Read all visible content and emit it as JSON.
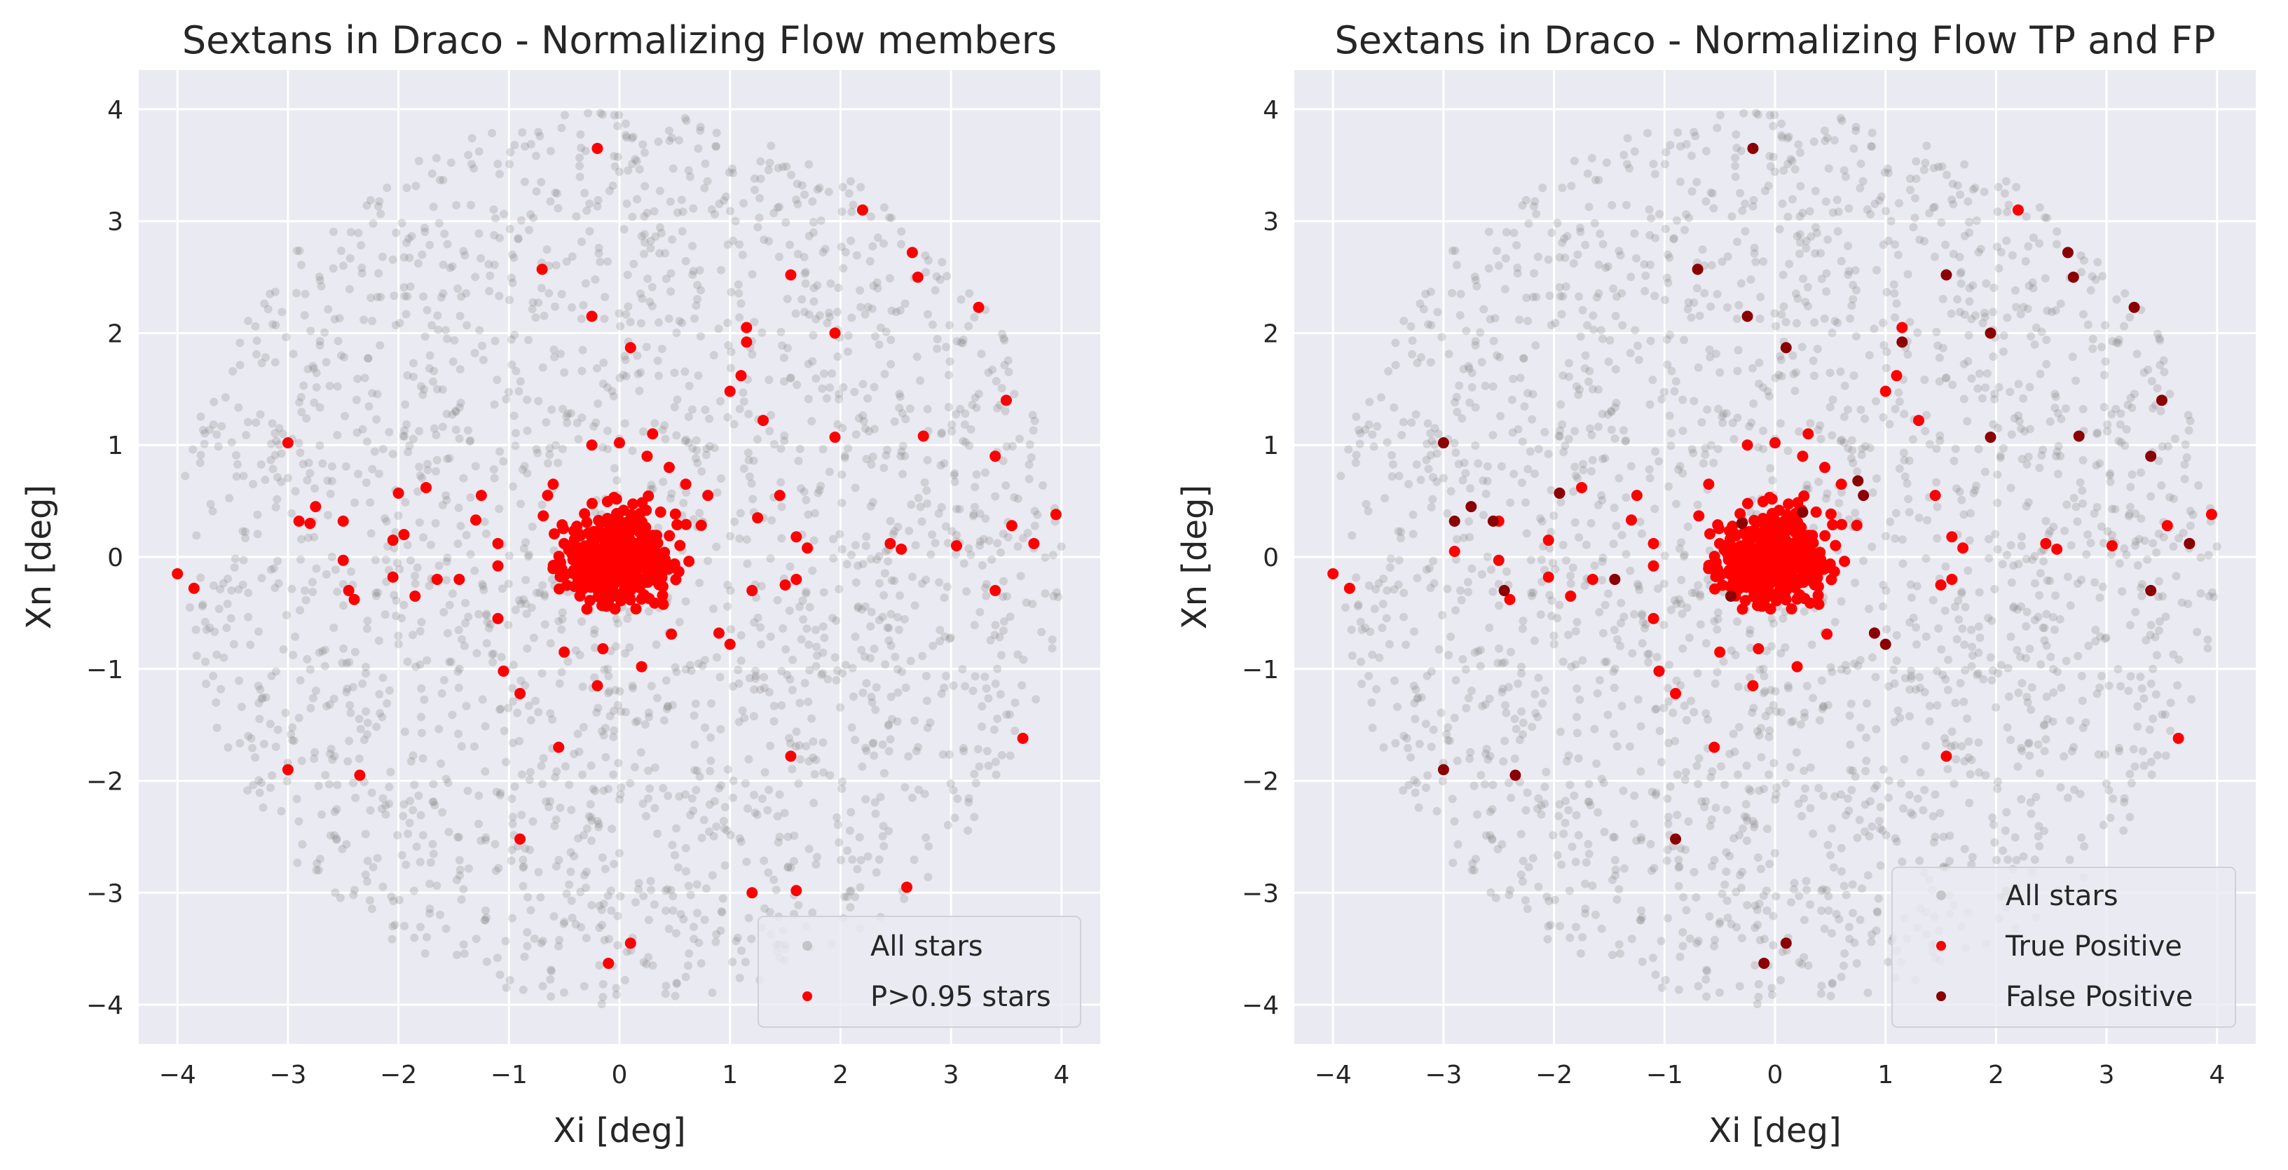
{
  "chart_data": [
    {
      "type": "scatter",
      "title": "Sextans in Draco - Normalizing Flow members",
      "xlabel": "Xi [deg]",
      "ylabel": "Xn [deg]",
      "xlim": [
        -4.35,
        4.35
      ],
      "ylim": [
        -4.35,
        4.35
      ],
      "xticks": [
        "−4",
        "−3",
        "−2",
        "−1",
        "0",
        "1",
        "2",
        "3",
        "4"
      ],
      "yticks": [
        "−4",
        "−3",
        "−2",
        "−1",
        "0",
        "1",
        "2",
        "3",
        "4"
      ],
      "grid": true,
      "legend_position": "lower-right",
      "background_field": {
        "name": "All stars",
        "shape": "disk",
        "center": [
          0,
          0
        ],
        "radius": 4.0,
        "approx_count": 2200,
        "color": "#808080",
        "alpha": 0.25
      },
      "member_cluster": {
        "center": [
          0,
          0
        ],
        "core_sigma": 0.25,
        "approx_count": 420
      },
      "series": [
        {
          "name": "All stars",
          "color": "#a0a0a0",
          "points": []
        },
        {
          "name": "P>0.95 stars",
          "color": "#ff0000",
          "points": [
            [
              -0.2,
              3.65
            ],
            [
              2.2,
              3.1
            ],
            [
              2.65,
              2.72
            ],
            [
              2.7,
              2.5
            ],
            [
              1.55,
              2.52
            ],
            [
              -0.7,
              2.57
            ],
            [
              -0.25,
              2.15
            ],
            [
              0.1,
              1.87
            ],
            [
              3.25,
              2.23
            ],
            [
              1.15,
              2.05
            ],
            [
              1.15,
              1.92
            ],
            [
              1.95,
              2.0
            ],
            [
              1.1,
              1.62
            ],
            [
              1.0,
              1.48
            ],
            [
              3.5,
              1.4
            ],
            [
              1.3,
              1.22
            ],
            [
              2.75,
              1.08
            ],
            [
              1.95,
              1.07
            ],
            [
              -3.0,
              1.02
            ],
            [
              3.4,
              0.9
            ],
            [
              3.95,
              0.38
            ],
            [
              3.55,
              0.28
            ],
            [
              3.75,
              0.12
            ],
            [
              3.05,
              0.1
            ],
            [
              2.45,
              0.12
            ],
            [
              2.55,
              0.07
            ],
            [
              1.7,
              0.08
            ],
            [
              -4.0,
              -0.15
            ],
            [
              -3.85,
              -0.28
            ],
            [
              -2.9,
              0.32
            ],
            [
              -2.75,
              0.45
            ],
            [
              -2.8,
              0.3
            ],
            [
              -2.5,
              0.32
            ],
            [
              -2.5,
              -0.03
            ],
            [
              -2.45,
              -0.3
            ],
            [
              -2.4,
              -0.38
            ],
            [
              -2.05,
              0.15
            ],
            [
              -2.0,
              0.57
            ],
            [
              -1.95,
              0.2
            ],
            [
              -2.05,
              -0.18
            ],
            [
              -1.85,
              -0.35
            ],
            [
              -1.75,
              0.62
            ],
            [
              -1.65,
              -0.2
            ],
            [
              -1.45,
              -0.2
            ],
            [
              -1.3,
              0.33
            ],
            [
              -1.1,
              0.12
            ],
            [
              -1.1,
              -0.08
            ],
            [
              1.45,
              0.55
            ],
            [
              1.6,
              0.18
            ],
            [
              1.6,
              -0.2
            ],
            [
              1.5,
              -0.25
            ],
            [
              3.4,
              -0.3
            ],
            [
              3.65,
              -1.62
            ],
            [
              1.55,
              -1.78
            ],
            [
              1.2,
              -3.0
            ],
            [
              1.6,
              -2.98
            ],
            [
              2.6,
              -2.95
            ],
            [
              0.1,
              -3.45
            ],
            [
              -0.1,
              -3.63
            ],
            [
              -0.9,
              -2.52
            ],
            [
              -1.05,
              -1.02
            ],
            [
              -0.9,
              -1.22
            ],
            [
              -3.0,
              -1.9
            ],
            [
              -2.35,
              -1.95
            ],
            [
              -0.55,
              -1.7
            ],
            [
              -0.2,
              -1.15
            ],
            [
              0.2,
              -0.98
            ],
            [
              -0.15,
              -0.82
            ],
            [
              -0.5,
              -0.85
            ],
            [
              1.0,
              -0.78
            ],
            [
              0.9,
              -0.68
            ],
            [
              -1.1,
              -0.55
            ],
            [
              -1.25,
              0.55
            ],
            [
              0.25,
              0.9
            ],
            [
              -0.25,
              1.0
            ],
            [
              0.6,
              0.65
            ],
            [
              0.8,
              0.55
            ],
            [
              1.2,
              -0.3
            ],
            [
              1.25,
              0.35
            ],
            [
              0.45,
              0.8
            ],
            [
              -0.6,
              0.65
            ],
            [
              -0.65,
              0.55
            ],
            [
              0.0,
              1.02
            ],
            [
              0.3,
              1.1
            ]
          ]
        }
      ]
    },
    {
      "type": "scatter",
      "title": "Sextans in Draco - Normalizing Flow TP and FP",
      "xlabel": "Xi [deg]",
      "ylabel": "Xn [deg]",
      "xlim": [
        -4.35,
        4.35
      ],
      "ylim": [
        -4.35,
        4.35
      ],
      "xticks": [
        "−4",
        "−3",
        "−2",
        "−1",
        "0",
        "1",
        "2",
        "3",
        "4"
      ],
      "yticks": [
        "−4",
        "−3",
        "−2",
        "−1",
        "0",
        "1",
        "2",
        "3",
        "4"
      ],
      "grid": true,
      "legend_position": "lower-right",
      "background_field": {
        "name": "All stars",
        "shape": "disk",
        "center": [
          0,
          0
        ],
        "radius": 4.0,
        "approx_count": 2200,
        "color": "#808080",
        "alpha": 0.25
      },
      "member_cluster": {
        "center": [
          0,
          0
        ],
        "core_sigma": 0.25,
        "approx_count": 420
      },
      "series": [
        {
          "name": "All stars",
          "color": "#a0a0a0",
          "points": []
        },
        {
          "name": "True Positive",
          "color": "#ff0000",
          "points": [
            [
              2.2,
              3.1
            ],
            [
              1.15,
              2.05
            ],
            [
              1.1,
              1.62
            ],
            [
              1.0,
              1.48
            ],
            [
              1.3,
              1.22
            ],
            [
              3.95,
              0.38
            ],
            [
              3.55,
              0.28
            ],
            [
              3.75,
              0.12
            ],
            [
              3.05,
              0.1
            ],
            [
              2.45,
              0.12
            ],
            [
              2.55,
              0.07
            ],
            [
              1.7,
              0.08
            ],
            [
              -4.0,
              -0.15
            ],
            [
              -3.85,
              -0.28
            ],
            [
              -2.9,
              0.05
            ],
            [
              -2.5,
              0.32
            ],
            [
              -2.5,
              -0.03
            ],
            [
              -2.4,
              -0.38
            ],
            [
              -2.05,
              0.15
            ],
            [
              -2.05,
              -0.18
            ],
            [
              -1.85,
              -0.35
            ],
            [
              -1.75,
              0.62
            ],
            [
              -1.65,
              -0.2
            ],
            [
              -1.3,
              0.33
            ],
            [
              -1.1,
              0.12
            ],
            [
              -1.1,
              -0.08
            ],
            [
              1.45,
              0.55
            ],
            [
              1.6,
              0.18
            ],
            [
              1.6,
              -0.2
            ],
            [
              1.5,
              -0.25
            ],
            [
              3.65,
              -1.62
            ],
            [
              1.55,
              -1.78
            ],
            [
              -1.05,
              -1.02
            ],
            [
              -0.9,
              -1.22
            ],
            [
              -0.55,
              -1.7
            ],
            [
              -0.2,
              -1.15
            ],
            [
              0.2,
              -0.98
            ],
            [
              -0.15,
              -0.82
            ],
            [
              -0.5,
              -0.85
            ],
            [
              0.9,
              -0.68
            ],
            [
              -1.1,
              -0.55
            ],
            [
              -1.25,
              0.55
            ],
            [
              0.25,
              0.9
            ],
            [
              -0.25,
              1.0
            ],
            [
              0.6,
              0.65
            ],
            [
              0.45,
              0.8
            ],
            [
              -0.6,
              0.65
            ],
            [
              0.0,
              1.02
            ],
            [
              0.3,
              1.1
            ]
          ]
        },
        {
          "name": "False Positive",
          "color": "#8b0000",
          "points": [
            [
              -0.2,
              3.65
            ],
            [
              2.65,
              2.72
            ],
            [
              2.7,
              2.5
            ],
            [
              1.55,
              2.52
            ],
            [
              -0.7,
              2.57
            ],
            [
              -0.25,
              2.15
            ],
            [
              0.1,
              1.87
            ],
            [
              3.25,
              2.23
            ],
            [
              1.15,
              1.92
            ],
            [
              1.95,
              2.0
            ],
            [
              3.5,
              1.4
            ],
            [
              2.75,
              1.08
            ],
            [
              1.95,
              1.07
            ],
            [
              -3.0,
              1.02
            ],
            [
              3.4,
              0.9
            ],
            [
              3.75,
              0.12
            ],
            [
              -2.9,
              0.32
            ],
            [
              -2.75,
              0.45
            ],
            [
              -2.55,
              0.32
            ],
            [
              -2.45,
              -0.3
            ],
            [
              -1.95,
              0.57
            ],
            [
              -1.45,
              -0.2
            ],
            [
              3.4,
              -0.3
            ],
            [
              0.1,
              -3.45
            ],
            [
              -0.1,
              -3.63
            ],
            [
              -0.9,
              -2.52
            ],
            [
              -3.0,
              -1.9
            ],
            [
              -2.35,
              -1.95
            ],
            [
              1.0,
              -0.78
            ],
            [
              0.9,
              -0.68
            ],
            [
              0.8,
              0.55
            ],
            [
              0.75,
              0.68
            ],
            [
              0.25,
              0.4
            ],
            [
              -0.3,
              0.3
            ],
            [
              -0.4,
              -0.35
            ]
          ]
        }
      ]
    }
  ]
}
